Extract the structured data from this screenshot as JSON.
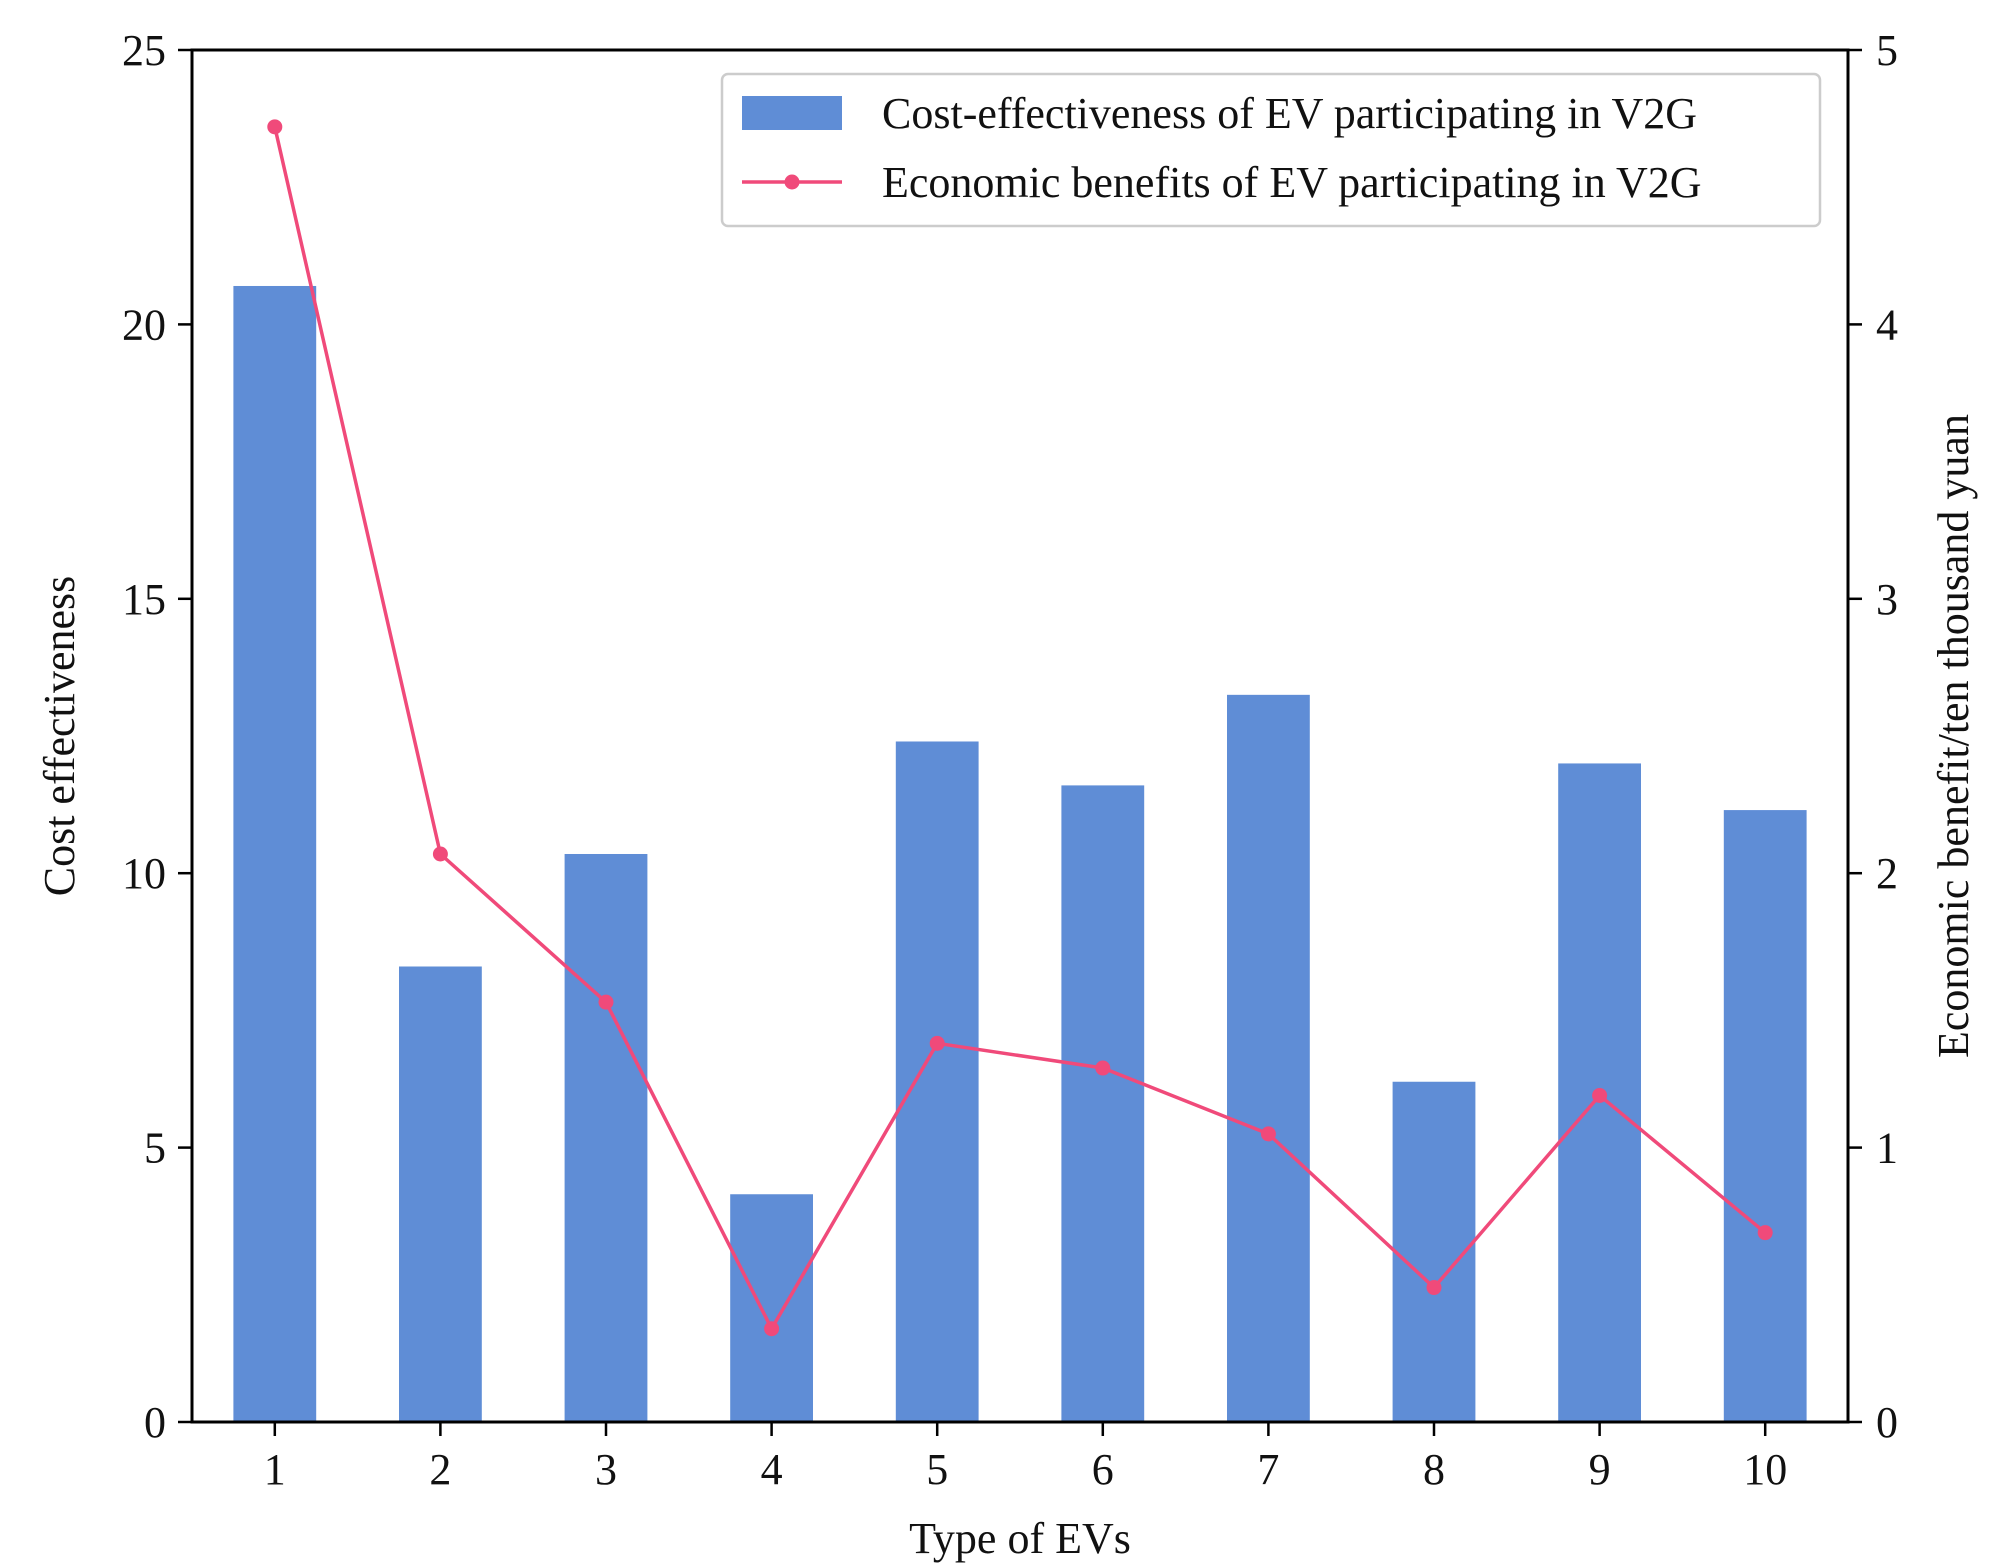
{
  "chart_data": {
    "type": "bar",
    "xlabel": "Type of EVs",
    "ylabel": "Cost effectiveness",
    "y2label": "Economic benefit/ten thousand yuan",
    "categories": [
      "1",
      "2",
      "3",
      "4",
      "5",
      "6",
      "7",
      "8",
      "9",
      "10"
    ],
    "ylim": [
      0,
      25
    ],
    "y2lim": [
      0,
      5
    ],
    "yticks": [
      "0",
      "5",
      "10",
      "15",
      "20",
      "25"
    ],
    "y2ticks": [
      "0",
      "1",
      "2",
      "3",
      "4",
      "5"
    ],
    "series": [
      {
        "name": "Cost-effectiveness of EV participating in V2G",
        "type": "bar",
        "axis": "left",
        "color": "#5f8dd6",
        "values": [
          20.7,
          8.3,
          10.35,
          4.15,
          12.4,
          11.6,
          13.25,
          6.2,
          12.0,
          11.15
        ]
      },
      {
        "name": "Economic benefits of EV participating in V2G",
        "type": "line",
        "axis": "right",
        "color": "#f04a7a",
        "values": [
          4.72,
          2.07,
          1.53,
          0.34,
          1.38,
          1.29,
          1.05,
          0.49,
          1.19,
          0.69
        ]
      }
    ],
    "legend": "top-right",
    "grid": false
  }
}
